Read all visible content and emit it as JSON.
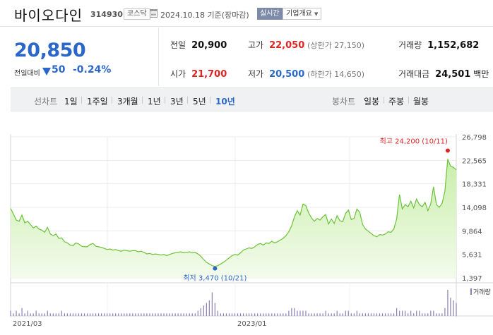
{
  "stock": {
    "name": "바이오다인",
    "code": "314930",
    "market": "코스닥",
    "date_text": "2024.10.18 기준(장마감)",
    "realtime_label": "실시간",
    "company_info_label": "기업개요",
    "price": "20,850",
    "change_label": "전일대비",
    "change": "50",
    "change_pct": "-0.24%"
  },
  "stats": {
    "prev_close": {
      "label": "전일",
      "value": "20,900"
    },
    "high": {
      "label": "고가",
      "value": "22,050",
      "sub": "(상한가 27,150)"
    },
    "volume": {
      "label": "거래량",
      "value": "1,152,682"
    },
    "open": {
      "label": "시가",
      "value": "21,700"
    },
    "low": {
      "label": "저가",
      "value": "20,500",
      "sub": "(하한가 14,650)"
    },
    "amount": {
      "label": "거래대금",
      "value": "24,501",
      "unit": "백만"
    }
  },
  "tabs": {
    "line_label": "선차트",
    "line_periods": [
      "1일",
      "1주일",
      "3개월",
      "1년",
      "3년",
      "5년",
      "10년"
    ],
    "active_period": "10년",
    "candle_label": "봉차트",
    "candle_periods": [
      "일봉",
      "주봉",
      "월봉"
    ]
  },
  "colors": {
    "price_down": "#2b67c9",
    "price_up": "#e02424",
    "line": "#6cc238",
    "area_top": "#c9eeaa",
    "area_bottom": "#f3fbec"
  },
  "chart_data": {
    "type": "area",
    "y_ticks": [
      "26,798",
      "22,565",
      "18,331",
      "14,098",
      "9,864",
      "5,631",
      "1,397"
    ],
    "ylim": [
      1397,
      26798
    ],
    "x_ticks": [
      "2021/03",
      "2023/01"
    ],
    "max_annotation": "최고 24,200 (10/11)",
    "min_annotation": "최저 3,470 (10/21)",
    "volume_label": "거래량",
    "grid": true,
    "series": [
      {
        "values": [
          13900,
          12900,
          11800,
          11600,
          12700,
          11300,
          11600,
          11000,
          10400,
          10700,
          10200,
          10000,
          9600,
          10500,
          9300,
          9000,
          9300,
          8500,
          8600,
          7900,
          7700,
          7300,
          7200,
          7700,
          7500,
          7100,
          7000,
          7000,
          7400,
          7600,
          7100,
          7000,
          6900,
          6700,
          6500,
          6600,
          6400,
          6500,
          6300,
          6200,
          6400,
          6300,
          6200,
          6300,
          6300,
          6100,
          6200,
          6000,
          5700,
          5800,
          5600,
          5700,
          5600,
          5500,
          5600,
          5400,
          5600,
          5800,
          5900,
          6000,
          6100,
          5900,
          6000,
          6100,
          5900,
          6000,
          5700,
          5300,
          4700,
          4200,
          3900,
          3600,
          3470,
          3600,
          3900,
          4200,
          4600,
          5000,
          5400,
          5600,
          5500,
          5900,
          6400,
          6600,
          6800,
          6700,
          7000,
          7400,
          7600,
          7300,
          7700,
          7600,
          8000,
          7700,
          7900,
          8200,
          8500,
          9000,
          9700,
          10800,
          12400,
          13500,
          12700,
          14700,
          14400,
          13100,
          12200,
          11600,
          12100,
          11800,
          12400,
          12800,
          11100,
          12000,
          11200,
          12600,
          11700,
          11500,
          13000,
          13600,
          11900,
          12100,
          13800,
          13200,
          11000,
          10200,
          9800,
          9400,
          9000,
          8800,
          9200,
          9100,
          9300,
          9700,
          9600,
          10200,
          12000,
          16400,
          13800,
          14600,
          14200,
          15200,
          14000,
          15600,
          14600,
          14200,
          15000,
          13500,
          14700,
          17800,
          14600,
          14100,
          14800,
          17000,
          22800,
          21500,
          21300,
          20850
        ],
        "volume": [
          2,
          1,
          2,
          1,
          3,
          1,
          2,
          1,
          1,
          2,
          1,
          1,
          1,
          2,
          1,
          1,
          1,
          1,
          2,
          1,
          1,
          1,
          1,
          1,
          1,
          1,
          1,
          1,
          1,
          1,
          1,
          1,
          1,
          1,
          1,
          1,
          1,
          1,
          1,
          1,
          1,
          1,
          1,
          1,
          1,
          1,
          1,
          1,
          1,
          1,
          1,
          1,
          1,
          1,
          1,
          1,
          1,
          1,
          1,
          1,
          1,
          1,
          1,
          1,
          1,
          1,
          2,
          3,
          4,
          5,
          6,
          9,
          5,
          2,
          1,
          1,
          1,
          1,
          1,
          1,
          1,
          1,
          1,
          1,
          1,
          1,
          1,
          1,
          1,
          1,
          1,
          1,
          1,
          1,
          1,
          1,
          1,
          1,
          2,
          3,
          3,
          2,
          2,
          2,
          2,
          1,
          1,
          1,
          1,
          1,
          1,
          2,
          1,
          1,
          1,
          2,
          1,
          1,
          2,
          2,
          1,
          1,
          2,
          1,
          1,
          1,
          1,
          1,
          1,
          1,
          1,
          1,
          1,
          1,
          1,
          1,
          3,
          2,
          2,
          2,
          1,
          2,
          1,
          2,
          2,
          1,
          1,
          1,
          2,
          2,
          1,
          1,
          1,
          3,
          10,
          7,
          6,
          5
        ]
      }
    ]
  }
}
